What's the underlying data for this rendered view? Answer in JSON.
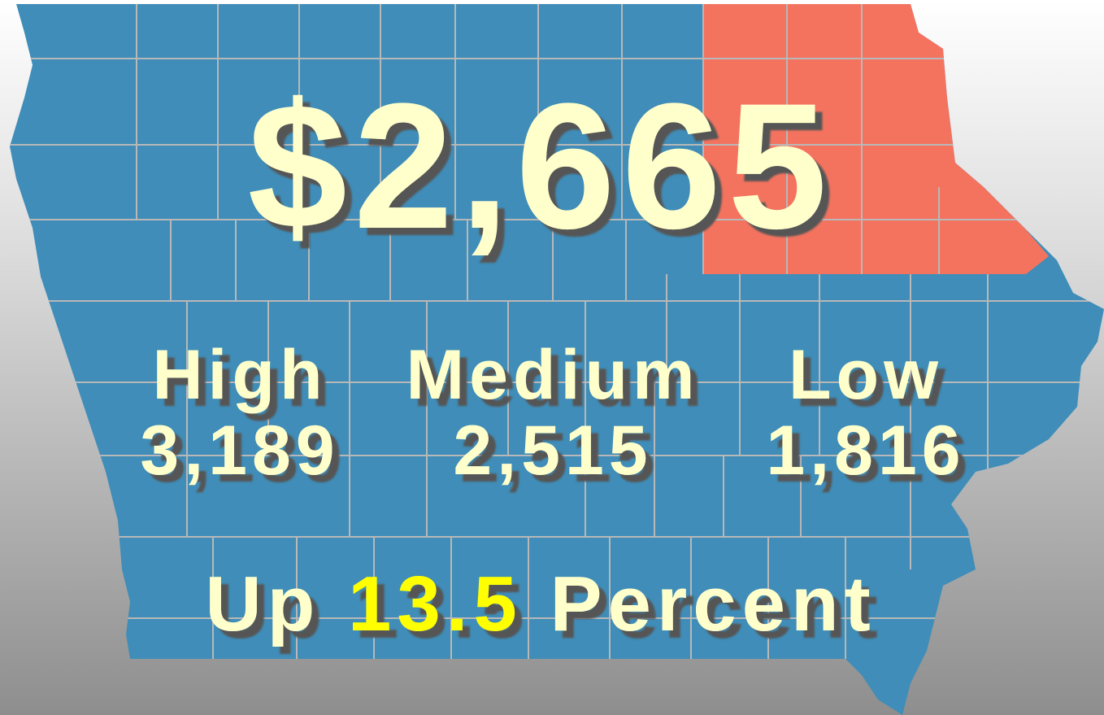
{
  "headline": "$2,665",
  "groups": [
    {
      "label": "High",
      "value": "3,189"
    },
    {
      "label": "Medium",
      "value": "2,515"
    },
    {
      "label": "Low",
      "value": "1,816"
    }
  ],
  "footer": {
    "prefix": "Up",
    "change": "13.5",
    "suffix": "Percent"
  }
}
